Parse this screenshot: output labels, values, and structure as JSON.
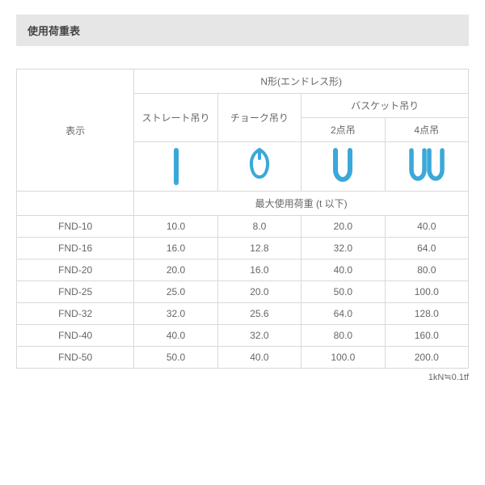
{
  "title": "使用荷重表",
  "header": {
    "top": "N形(エンドレス形)",
    "rowhead": "表示",
    "straight": "ストレート吊り",
    "choke": "チョーク吊り",
    "basket": "バスケット吊り",
    "basket_2pt": "2点吊",
    "basket_4pt": "4点吊",
    "max_load": "最大使用荷重 (t 以下)"
  },
  "icon_color": "#3aa8d8",
  "rows": [
    {
      "name": "FND-10",
      "c0": "10.0",
      "c1": "8.0",
      "c2": "20.0",
      "c3": "40.0"
    },
    {
      "name": "FND-16",
      "c0": "16.0",
      "c1": "12.8",
      "c2": "32.0",
      "c3": "64.0"
    },
    {
      "name": "FND-20",
      "c0": "20.0",
      "c1": "16.0",
      "c2": "40.0",
      "c3": "80.0"
    },
    {
      "name": "FND-25",
      "c0": "25.0",
      "c1": "20.0",
      "c2": "50.0",
      "c3": "100.0"
    },
    {
      "name": "FND-32",
      "c0": "32.0",
      "c1": "25.6",
      "c2": "64.0",
      "c3": "128.0"
    },
    {
      "name": "FND-40",
      "c0": "40.0",
      "c1": "32.0",
      "c2": "80.0",
      "c3": "160.0"
    },
    {
      "name": "FND-50",
      "c0": "50.0",
      "c1": "40.0",
      "c2": "100.0",
      "c3": "200.0"
    }
  ],
  "footnote": "1kN≒0.1tf"
}
